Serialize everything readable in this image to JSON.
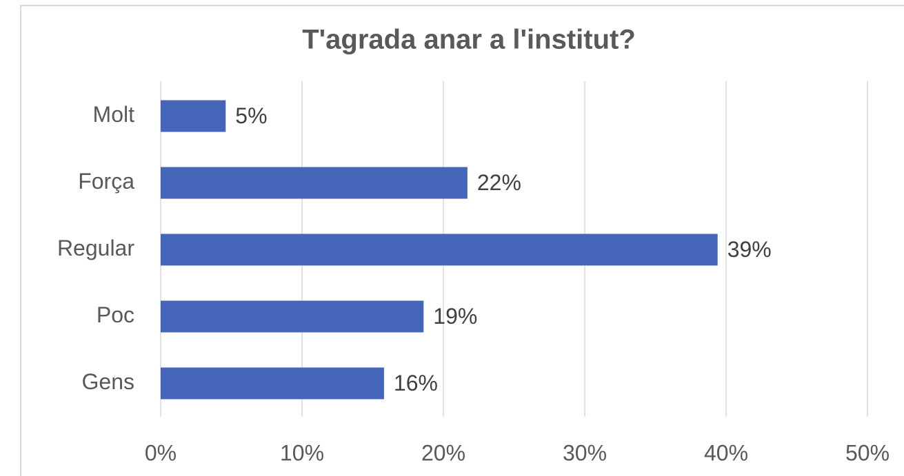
{
  "chart_data": {
    "type": "bar",
    "orientation": "horizontal",
    "title": "T'agrada anar a l'institut?",
    "categories": [
      "Molt",
      "Força",
      "Regular",
      "Poc",
      "Gens"
    ],
    "values": [
      4.6,
      21.7,
      39.4,
      18.6,
      15.8
    ],
    "value_labels": [
      "5%",
      "22%",
      "39%",
      "19%",
      "16%"
    ],
    "color": "#4565b9",
    "xlim": [
      0,
      50
    ],
    "xticks": [
      {
        "value": 0,
        "label": "0%"
      },
      {
        "value": 10,
        "label": "10%"
      },
      {
        "value": 20,
        "label": "20%"
      },
      {
        "value": 30,
        "label": "30%"
      },
      {
        "value": 40,
        "label": "40%"
      },
      {
        "value": 50,
        "label": "50%"
      }
    ],
    "grid": true
  }
}
